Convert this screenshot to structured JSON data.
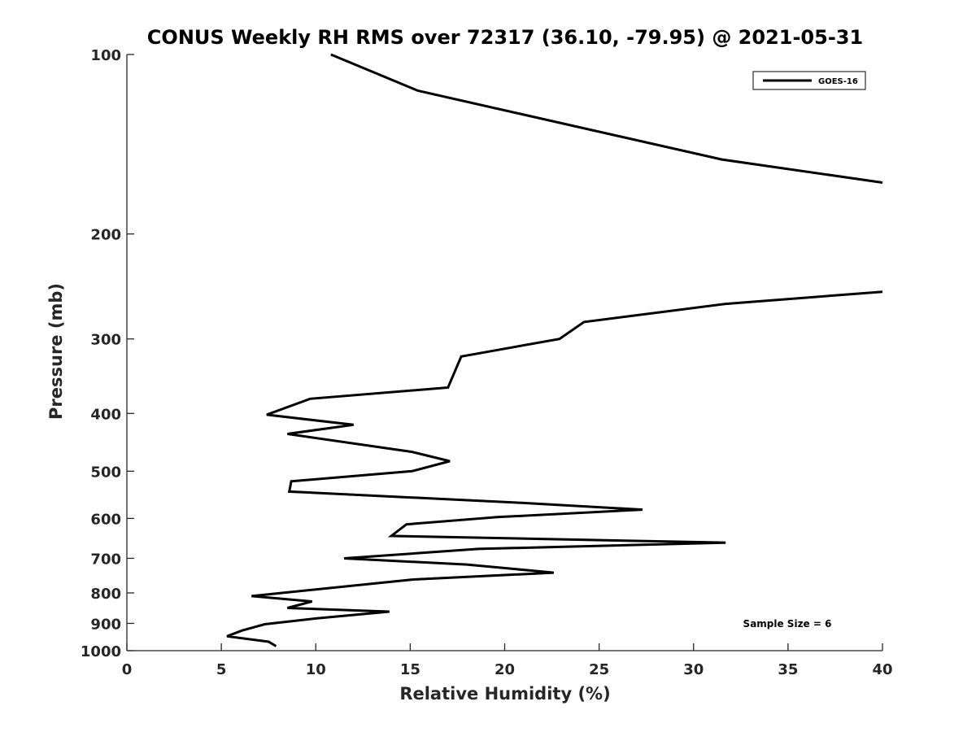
{
  "chart_data": {
    "type": "line",
    "title": "CONUS Weekly RH RMS over 72317 (36.10, -79.95) @ 2021-05-31",
    "xlabel": "Relative Humidity (%)",
    "ylabel": "Pressure (mb)",
    "xlim": [
      0,
      40
    ],
    "ylim": [
      1000,
      100
    ],
    "y_scale": "log",
    "y_reversed": true,
    "x_ticks": [
      "0",
      "5",
      "10",
      "15",
      "20",
      "25",
      "30",
      "35",
      "40"
    ],
    "y_ticks": [
      "100",
      "200",
      "300",
      "400",
      "500",
      "600",
      "700",
      "800",
      "900",
      "1000"
    ],
    "grid": false,
    "legend_position": "top-right",
    "annotation": "Sample Size = 6",
    "series": [
      {
        "name": "GOES-16",
        "color": "#000000",
        "segments": [
          {
            "x": [
              10.8,
              15.4,
              31.5,
              40.0
            ],
            "y": [
              100,
              115,
              150,
              164
            ]
          },
          {
            "x": [
              40.0,
              31.7,
              24.2,
              22.9,
              17.7,
              17.0,
              9.7,
              7.4,
              12.0,
              8.5,
              15.1,
              17.1,
              15.1,
              8.7,
              8.6,
              20.9,
              27.3,
              19.6,
              14.8,
              14.0,
              31.7,
              18.6,
              11.5,
              18.0,
              22.6,
              15.1,
              6.6,
              9.8,
              8.5,
              13.9,
              10.0,
              7.3,
              6.1,
              5.3,
              7.5,
              7.9
            ],
            "y": [
              250,
              262,
              281,
              300,
              321,
              362,
              378,
              402,
              418,
              433,
              464,
              481,
              500,
              520,
              541,
              565,
              580,
              597,
              614,
              642,
              659,
              675,
              700,
              717,
              740,
              760,
              810,
              827,
              848,
              860,
              883,
              903,
              925,
              946,
              966,
              983
            ]
          }
        ]
      }
    ]
  }
}
